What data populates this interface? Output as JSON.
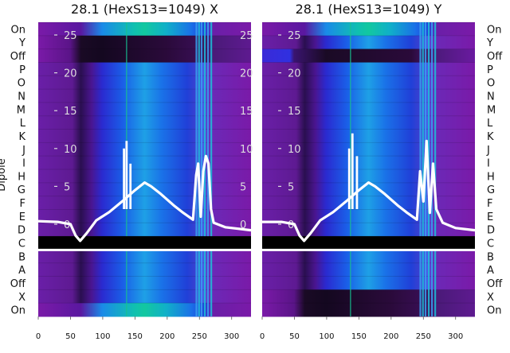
{
  "chart_data": [
    {
      "type": "heatmap",
      "title": "28.1 (HexS13=1049) X",
      "ylabel": "Dipole",
      "x_ticks": [
        0,
        50,
        100,
        150,
        200,
        250,
        300
      ],
      "xlim": [
        0,
        330
      ],
      "row_labels_top_to_bottom": [
        "On",
        "Y",
        "Off",
        "P",
        "O",
        "N",
        "M",
        "L",
        "K",
        "J",
        "I",
        "H",
        "G",
        "F",
        "E",
        "D",
        "C",
        "B",
        "A",
        "Off",
        "X",
        "On"
      ],
      "inner_axis": {
        "ticks": [
          0,
          5,
          10,
          15,
          20,
          25
        ],
        "ylim": [
          -2,
          27
        ]
      },
      "overlay_line": {
        "color": "#ffffff",
        "x": [
          0,
          30,
          50,
          58,
          65,
          75,
          90,
          110,
          130,
          150,
          165,
          175,
          190,
          210,
          225,
          240,
          245,
          248,
          252,
          256,
          260,
          264,
          268,
          272,
          290,
          310,
          330
        ],
        "y": [
          0.4,
          0.3,
          0,
          -1.5,
          -2.2,
          -1.2,
          0.5,
          1.6,
          3.0,
          4.5,
          5.5,
          5.0,
          4.0,
          2.5,
          1.5,
          0.6,
          6.5,
          8.0,
          1.0,
          7.0,
          9.0,
          8.0,
          2.0,
          0.2,
          -0.4,
          -0.6,
          -0.8
        ]
      },
      "overlay_spikes": [
        {
          "x": 133,
          "y": 10
        },
        {
          "x": 137,
          "y": 11
        },
        {
          "x": 143,
          "y": 8
        }
      ]
    },
    {
      "type": "heatmap",
      "title": "28.1 (HexS13=1049) Y",
      "ylabel": "",
      "x_ticks": [
        0,
        50,
        100,
        150,
        200,
        250,
        300
      ],
      "xlim": [
        0,
        330
      ],
      "row_labels_top_to_bottom": [
        "On",
        "Y",
        "Off",
        "P",
        "O",
        "N",
        "M",
        "L",
        "K",
        "J",
        "I",
        "H",
        "G",
        "F",
        "E",
        "D",
        "C",
        "B",
        "A",
        "Off",
        "X",
        "On"
      ],
      "inner_axis": {
        "ticks": [
          0,
          5,
          10,
          15,
          20,
          25
        ],
        "ylim": [
          -2,
          27
        ]
      },
      "overlay_line": {
        "color": "#ffffff",
        "x": [
          0,
          30,
          50,
          58,
          65,
          75,
          90,
          110,
          130,
          150,
          165,
          175,
          190,
          210,
          225,
          240,
          245,
          250,
          255,
          260,
          265,
          270,
          280,
          300,
          330
        ],
        "y": [
          0.3,
          0.3,
          0,
          -1.5,
          -2.2,
          -1.2,
          0.5,
          1.6,
          3.0,
          4.5,
          5.5,
          5.0,
          4.0,
          2.5,
          1.5,
          0.6,
          7.0,
          3.0,
          11.0,
          1.5,
          8.0,
          2.0,
          0.2,
          -0.5,
          -0.8
        ]
      },
      "overlay_spikes": [
        {
          "x": 135,
          "y": 10
        },
        {
          "x": 140,
          "y": 12
        },
        {
          "x": 147,
          "y": 9
        }
      ]
    }
  ]
}
